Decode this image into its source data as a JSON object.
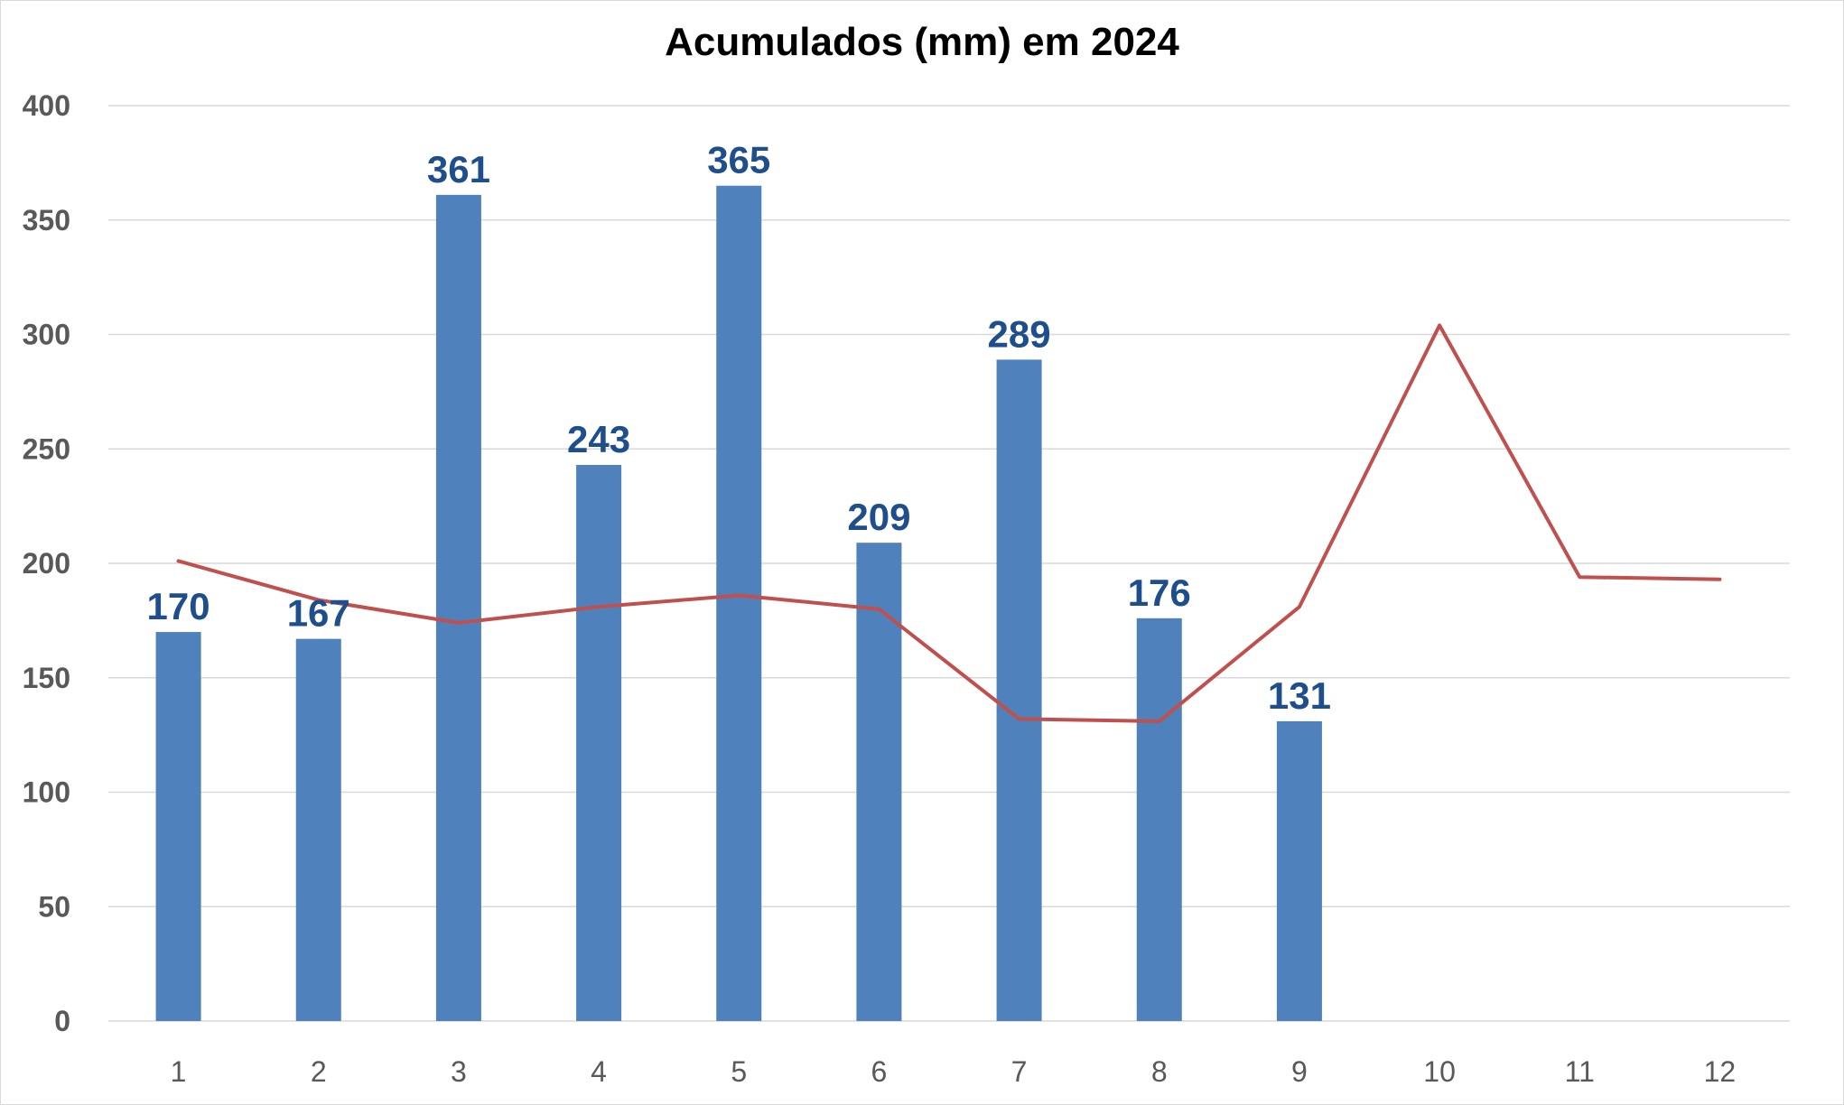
{
  "chart_data": {
    "type": "bar",
    "title": "Acumulados (mm) em 2024",
    "xlabel": "",
    "ylabel": "",
    "categories": [
      "1",
      "2",
      "3",
      "4",
      "5",
      "6",
      "7",
      "8",
      "9",
      "10",
      "11",
      "12"
    ],
    "ylim": [
      0,
      400
    ],
    "yticks": [
      "0",
      "50",
      "100",
      "150",
      "200",
      "250",
      "300",
      "350",
      "400"
    ],
    "grid": true,
    "legend": "none",
    "series": [
      {
        "type": "bar",
        "color": "#4f81bd",
        "label_color": "#1f4e8c",
        "values": [
          170,
          167,
          361,
          243,
          365,
          209,
          289,
          176,
          131,
          null,
          null,
          null
        ],
        "data_labels": [
          "170",
          "167",
          "361",
          "243",
          "365",
          "209",
          "289",
          "176",
          "131",
          "",
          "",
          ""
        ]
      },
      {
        "type": "line",
        "color": "#c0504d",
        "values": [
          201,
          184,
          174,
          181,
          186,
          180,
          132,
          131,
          181,
          304,
          194,
          193
        ]
      }
    ]
  }
}
